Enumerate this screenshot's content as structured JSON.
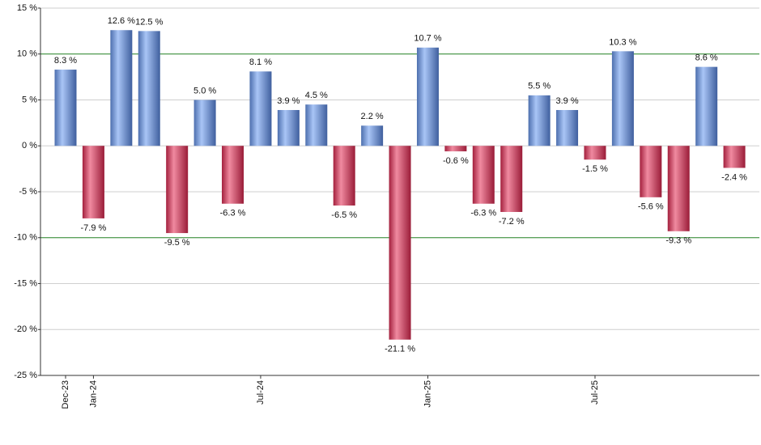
{
  "chart_data": {
    "type": "bar",
    "categories": [
      "Dec-23",
      "Jan-24",
      null,
      null,
      null,
      null,
      null,
      "Jul-24",
      null,
      null,
      null,
      null,
      null,
      "Jan-25",
      null,
      null,
      null,
      null,
      null,
      "Jul-25",
      null,
      null,
      null,
      null,
      null
    ],
    "values": [
      8.3,
      -7.9,
      12.6,
      12.5,
      -9.5,
      5.0,
      -6.3,
      8.1,
      3.9,
      4.5,
      -6.5,
      2.2,
      -21.1,
      10.7,
      -0.6,
      -6.3,
      -7.2,
      5.5,
      3.9,
      -1.5,
      10.3,
      -5.6,
      -9.3,
      8.6,
      -2.4
    ],
    "value_labels": [
      "8.3 %",
      "-7.9 %",
      "12.6 %",
      "12.5 %",
      "-9.5 %",
      "5.0 %",
      "-6.3 %",
      "8.1 %",
      "3.9 %",
      "4.5 %",
      "-6.5 %",
      "2.2 %",
      "-21.1 %",
      "10.7 %",
      "-0.6 %",
      "-6.3 %",
      "-7.2 %",
      "5.5 %",
      "3.9 %",
      "-1.5 %",
      "10.3 %",
      "-5.6 %",
      "-9.3 %",
      "8.6 %",
      "-2.4 %"
    ],
    "positive_color": "#6f93d8",
    "negative_color": "#d23c5c",
    "ylim": [
      -25,
      15
    ],
    "yticks": [
      {
        "value": -25,
        "label": "-25 %"
      },
      {
        "value": -20,
        "label": "-20 %"
      },
      {
        "value": -15,
        "label": "-15 %"
      },
      {
        "value": -10,
        "label": "-10 %"
      },
      {
        "value": -5,
        "label": "-5 %"
      },
      {
        "value": 0,
        "label": "0 %"
      },
      {
        "value": 5,
        "label": "5 %"
      },
      {
        "value": 10,
        "label": "10 %"
      },
      {
        "value": 15,
        "label": "15 %"
      }
    ],
    "reference_lines": [
      10,
      -10
    ],
    "reference_color": "#2e8b2e",
    "grid": true
  }
}
